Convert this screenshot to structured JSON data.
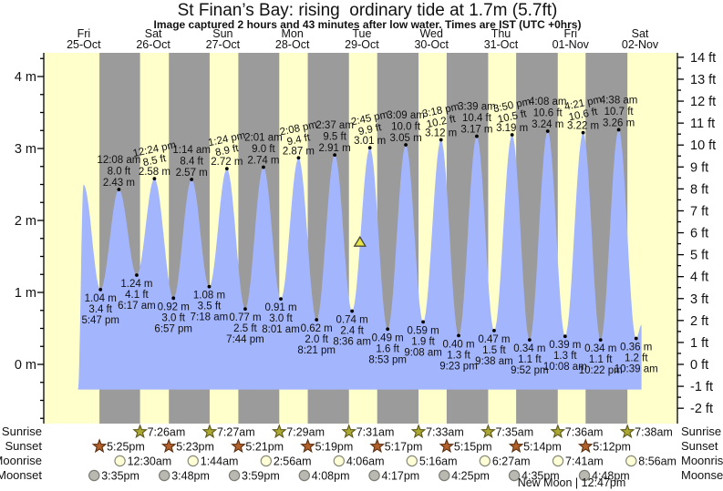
{
  "header": {
    "title": "St Finan’s Bay: rising  ordinary tide at 1.7m (5.7ft)",
    "subtitle": "Image captured 2 hours and 43 minutes after low water. Times are IST (UTC +0hrs)"
  },
  "days": [
    {
      "name": "Fri",
      "date": "25-Oct",
      "t_noon": 12
    },
    {
      "name": "Sat",
      "date": "26-Oct",
      "t_noon": 36
    },
    {
      "name": "Sun",
      "date": "27-Oct",
      "t_noon": 60
    },
    {
      "name": "Mon",
      "date": "28-Oct",
      "t_noon": 84
    },
    {
      "name": "Tue",
      "date": "29-Oct",
      "t_noon": 108
    },
    {
      "name": "Wed",
      "date": "30-Oct",
      "t_noon": 132
    },
    {
      "name": "Thu",
      "date": "31-Oct",
      "t_noon": 156
    },
    {
      "name": "Fri",
      "date": "01-Nov",
      "t_noon": 180
    },
    {
      "name": "Sat",
      "date": "02-Nov",
      "t_noon": 204
    }
  ],
  "axes": {
    "left_unit": "m",
    "left_labels": [
      {
        "v": 0,
        "label": "0 m"
      },
      {
        "v": 1,
        "label": "1 m"
      },
      {
        "v": 2,
        "label": "2 m"
      },
      {
        "v": 3,
        "label": "3 m"
      },
      {
        "v": 4,
        "label": "4 m"
      }
    ],
    "right_unit": "ft",
    "right_labels": [
      {
        "v": -2,
        "label": "-2 ft"
      },
      {
        "v": -1,
        "label": "-1 ft"
      },
      {
        "v": 0,
        "label": "0 ft"
      },
      {
        "v": 1,
        "label": "1 ft"
      },
      {
        "v": 2,
        "label": "2 ft"
      },
      {
        "v": 3,
        "label": "3 ft"
      },
      {
        "v": 4,
        "label": "4 ft"
      },
      {
        "v": 5,
        "label": "5 ft"
      },
      {
        "v": 6,
        "label": "6 ft"
      },
      {
        "v": 7,
        "label": "7 ft"
      },
      {
        "v": 8,
        "label": "8 ft"
      },
      {
        "v": 9,
        "label": "9 ft"
      },
      {
        "v": 10,
        "label": "10 ft"
      },
      {
        "v": 11,
        "label": "11 ft"
      },
      {
        "v": 12,
        "label": "12 ft"
      },
      {
        "v": 13,
        "label": "13 ft"
      },
      {
        "v": 14,
        "label": "14 ft"
      }
    ]
  },
  "chart_data": {
    "type": "area",
    "series_name": "tide height",
    "time_origin": "hours since 25-Oct 00:00 IST",
    "highs": [
      {
        "t": 24.13,
        "m": 2.43,
        "time": "12:08 am",
        "ft_label": "8.0 ft",
        "m_label": "2.43 m",
        "tilt": false
      },
      {
        "t": 36.4,
        "m": 2.58,
        "time": "12:24 pm",
        "ft_label": "8.5 ft",
        "m_label": "2.58 m",
        "tilt": true
      },
      {
        "t": 49.23,
        "m": 2.57,
        "time": "1:14 am",
        "ft_label": "8.4 ft",
        "m_label": "2.57 m",
        "tilt": false
      },
      {
        "t": 61.4,
        "m": 2.72,
        "time": "1:24 pm",
        "ft_label": "8.9 ft",
        "m_label": "2.72 m",
        "tilt": true
      },
      {
        "t": 74.02,
        "m": 2.74,
        "time": "2:01 am",
        "ft_label": "9.0 ft",
        "m_label": "2.74 m",
        "tilt": false
      },
      {
        "t": 86.13,
        "m": 2.87,
        "time": "2:08 pm",
        "ft_label": "9.4 ft",
        "m_label": "2.87 m",
        "tilt": true
      },
      {
        "t": 98.62,
        "m": 2.91,
        "time": "2:37 am",
        "ft_label": "9.5 ft",
        "m_label": "2.91 m",
        "tilt": false
      },
      {
        "t": 110.75,
        "m": 3.01,
        "time": "2:45 pm",
        "ft_label": "9.9 ft",
        "m_label": "3.01 m",
        "tilt": true
      },
      {
        "t": 123.15,
        "m": 3.05,
        "time": "3:09 am",
        "ft_label": "10.0 ft",
        "m_label": "3.05 m",
        "tilt": false
      },
      {
        "t": 135.3,
        "m": 3.12,
        "time": "3:18 pm",
        "ft_label": "10.2 ft",
        "m_label": "3.12 m",
        "tilt": true
      },
      {
        "t": 147.65,
        "m": 3.17,
        "time": "3:39 am",
        "ft_label": "10.4 ft",
        "m_label": "3.17 m",
        "tilt": false
      },
      {
        "t": 159.83,
        "m": 3.19,
        "time": "3:50 pm",
        "ft_label": "10.5 ft",
        "m_label": "3.19 m",
        "tilt": true
      },
      {
        "t": 172.13,
        "m": 3.24,
        "time": "4:08 am",
        "ft_label": "10.6 ft",
        "m_label": "3.24 m",
        "tilt": false
      },
      {
        "t": 184.35,
        "m": 3.22,
        "time": "4:21 pm",
        "ft_label": "10.6 ft",
        "m_label": "3.22 m",
        "tilt": true
      },
      {
        "t": 196.63,
        "m": 3.26,
        "time": "4:38 am",
        "ft_label": "10.7 ft",
        "m_label": "3.26 m",
        "tilt": false
      }
    ],
    "lows": [
      {
        "t": 17.78,
        "m": 1.04,
        "m_label": "1.04 m",
        "ft_label": "3.4 ft",
        "time": "5:47 pm"
      },
      {
        "t": 30.28,
        "m": 1.24,
        "m_label": "1.24 m",
        "ft_label": "4.1 ft",
        "time": "6:17 am"
      },
      {
        "t": 42.95,
        "m": 0.92,
        "m_label": "0.92 m",
        "ft_label": "3.0 ft",
        "time": "6:57 pm"
      },
      {
        "t": 55.3,
        "m": 1.08,
        "m_label": "1.08 m",
        "ft_label": "3.5 ft",
        "time": "7:18 am"
      },
      {
        "t": 67.73,
        "m": 0.77,
        "m_label": "0.77 m",
        "ft_label": "2.5 ft",
        "time": "7:44 pm"
      },
      {
        "t": 80.02,
        "m": 0.91,
        "m_label": "0.91 m",
        "ft_label": "3.0 ft",
        "time": "8:01 am"
      },
      {
        "t": 92.35,
        "m": 0.62,
        "m_label": "0.62 m",
        "ft_label": "2.0 ft",
        "time": "8:21 pm"
      },
      {
        "t": 104.6,
        "m": 0.74,
        "m_label": "0.74 m",
        "ft_label": "2.4 ft",
        "time": "8:36 am"
      },
      {
        "t": 116.88,
        "m": 0.49,
        "m_label": "0.49 m",
        "ft_label": "1.6 ft",
        "time": "8:53 pm"
      },
      {
        "t": 129.13,
        "m": 0.59,
        "m_label": "0.59 m",
        "ft_label": "1.9 ft",
        "time": "9:08 am"
      },
      {
        "t": 141.38,
        "m": 0.4,
        "m_label": "0.40 m",
        "ft_label": "1.3 ft",
        "time": "9:23 pm"
      },
      {
        "t": 153.63,
        "m": 0.47,
        "m_label": "0.47 m",
        "ft_label": "1.5 ft",
        "time": "9:38 am"
      },
      {
        "t": 165.87,
        "m": 0.34,
        "m_label": "0.34 m",
        "ft_label": "1.1 ft",
        "time": "9:52 pm"
      },
      {
        "t": 178.13,
        "m": 0.39,
        "m_label": "0.39 m",
        "ft_label": "1.3 ft",
        "time": "10:08 am"
      },
      {
        "t": 190.37,
        "m": 0.34,
        "m_label": "0.34 m",
        "ft_label": "1.1 ft",
        "time": "10:22 pm"
      },
      {
        "t": 202.65,
        "m": 0.36,
        "m_label": "0.36 m",
        "ft_label": "1.2 ft",
        "time": "10:39 am"
      }
    ],
    "curve_start": {
      "t": 10.0,
      "m": -0.35
    },
    "unlabeled_first_high": {
      "t": 11.92,
      "m": 2.5
    },
    "curve_end": {
      "t": 204.5,
      "m": 0.55
    },
    "baseline_m": -0.35,
    "current_marker": {
      "t": 107.32,
      "m": 1.7,
      "meaning": "current tide level 1.7m rising"
    }
  },
  "astro": {
    "rows": [
      {
        "label": "Sunrise",
        "icon": "sunrise-star-icon",
        "events": [
          {
            "time": "7:26am",
            "t": 31.43
          },
          {
            "time": "7:27am",
            "t": 55.45
          },
          {
            "time": "7:29am",
            "t": 79.48
          },
          {
            "time": "7:31am",
            "t": 103.52
          },
          {
            "time": "7:33am",
            "t": 127.55
          },
          {
            "time": "7:35am",
            "t": 151.58
          },
          {
            "time": "7:36am",
            "t": 175.6
          },
          {
            "time": "7:38am",
            "t": 199.63
          }
        ]
      },
      {
        "label": "Sunset",
        "icon": "sunset-star-icon",
        "events": [
          {
            "time": "5:25pm",
            "t": 17.42
          },
          {
            "time": "5:23pm",
            "t": 41.38
          },
          {
            "time": "5:21pm",
            "t": 65.35
          },
          {
            "time": "5:19pm",
            "t": 89.32
          },
          {
            "time": "5:17pm",
            "t": 113.28
          },
          {
            "time": "5:15pm",
            "t": 137.25
          },
          {
            "time": "5:14pm",
            "t": 161.23
          },
          {
            "time": "5:12pm",
            "t": 185.2
          }
        ]
      },
      {
        "label": "Moonrise",
        "icon": "moonrise-icon",
        "events": [
          {
            "time": "12:30am",
            "t": 24.5
          },
          {
            "time": "1:44am",
            "t": 49.73
          },
          {
            "time": "2:56am",
            "t": 74.93
          },
          {
            "time": "4:06am",
            "t": 100.1
          },
          {
            "time": "5:16am",
            "t": 125.27
          },
          {
            "time": "6:27am",
            "t": 150.45
          },
          {
            "time": "7:41am",
            "t": 175.68
          },
          {
            "time": "8:56am",
            "t": 200.93
          }
        ]
      },
      {
        "label": "Moonset",
        "icon": "moonset-icon",
        "events": [
          {
            "time": "3:35pm",
            "t": 15.58
          },
          {
            "time": "3:48pm",
            "t": 39.8
          },
          {
            "time": "3:59pm",
            "t": 63.98
          },
          {
            "time": "4:08pm",
            "t": 88.13
          },
          {
            "time": "4:17pm",
            "t": 112.28
          },
          {
            "time": "4:25pm",
            "t": 136.42
          },
          {
            "time": "4:35pm",
            "t": 160.58
          },
          {
            "time": "4:48pm",
            "t": 184.8
          }
        ]
      }
    ],
    "footnote": "New Moon | 12:47pm"
  },
  "colors": {
    "day_band": "#ffffcc",
    "night_band": "#9b9b9b",
    "tide_fill": "#a3b5fc",
    "day_label_red": "#ee2222",
    "axis_black": "#000000",
    "sunrise_star_fill": "#a9a933",
    "sunrise_star_stroke": "#5e5618",
    "sunset_star_fill": "#b4602a",
    "sunset_star_stroke": "#5a2f10",
    "moonrise_fill": "#ffffd6",
    "moonrise_stroke": "#8a8a7a",
    "moonset_fill": "#b9b9b1",
    "moonset_stroke": "#7c7c74",
    "marker_fill": "#e8e446",
    "marker_stroke": "#4a4a3a"
  }
}
